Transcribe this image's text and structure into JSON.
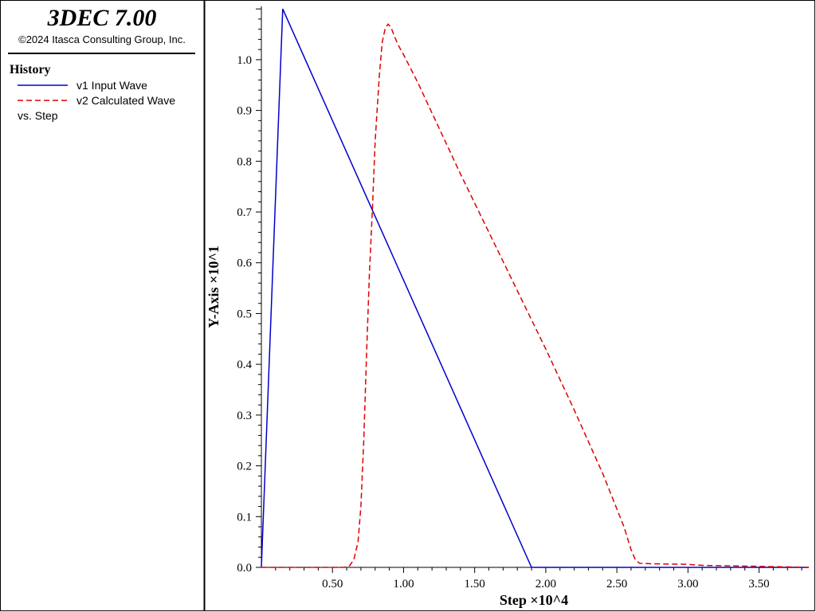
{
  "header": {
    "app_title": "3DEC 7.00",
    "copyright": "©2024 Itasca Consulting Group, Inc."
  },
  "legend": {
    "heading": "History",
    "items": [
      {
        "label": "v1 Input Wave",
        "color": "#0000cc",
        "style": "solid"
      },
      {
        "label": "v2 Calculated Wave",
        "color": "#dd0000",
        "style": "dashed"
      }
    ],
    "vs_label": "vs. Step"
  },
  "chart_data": {
    "type": "line",
    "xlabel": "Step ×10^4",
    "ylabel": "Y-Axis ×10^1",
    "xlim": [
      0,
      3.85
    ],
    "ylim": [
      0,
      1.105
    ],
    "xticks": [
      "0.50",
      "1.00",
      "1.50",
      "2.00",
      "2.50",
      "3.00",
      "3.50"
    ],
    "xtick_values": [
      0.5,
      1.0,
      1.5,
      2.0,
      2.5,
      3.0,
      3.5
    ],
    "yticks": [
      "0.0",
      "0.1",
      "0.2",
      "0.3",
      "0.4",
      "0.5",
      "0.6",
      "0.7",
      "0.8",
      "0.9",
      "1.0"
    ],
    "ytick_values": [
      0.0,
      0.1,
      0.2,
      0.3,
      0.4,
      0.5,
      0.6,
      0.7,
      0.8,
      0.9,
      1.0
    ],
    "grid": false,
    "series": [
      {
        "name": "v1 Input Wave",
        "color": "#0000cc",
        "dash": "solid",
        "x": [
          0.0,
          0.15,
          1.9,
          3.85
        ],
        "y": [
          0.0,
          1.1,
          0.0,
          0.0
        ]
      },
      {
        "name": "v2 Calculated Wave",
        "color": "#dd0000",
        "dash": "dashed",
        "x": [
          0.0,
          0.58,
          0.62,
          0.65,
          0.68,
          0.7,
          0.72,
          0.74,
          0.76,
          0.78,
          0.8,
          0.83,
          0.85,
          0.87,
          0.89,
          0.91,
          0.93,
          0.96,
          1.0,
          1.1,
          1.2,
          1.4,
          1.6,
          1.8,
          2.0,
          2.2,
          2.4,
          2.55,
          2.6,
          2.63,
          2.66,
          2.75,
          3.0,
          3.1,
          3.5,
          3.85
        ],
        "y": [
          0.0,
          0.0,
          0.003,
          0.015,
          0.05,
          0.12,
          0.25,
          0.42,
          0.58,
          0.7,
          0.84,
          0.97,
          1.035,
          1.06,
          1.07,
          1.065,
          1.05,
          1.03,
          1.01,
          0.955,
          0.895,
          0.775,
          0.66,
          0.545,
          0.43,
          0.31,
          0.185,
          0.08,
          0.035,
          0.015,
          0.008,
          0.007,
          0.006,
          0.004,
          0.002,
          0.0
        ]
      }
    ]
  }
}
